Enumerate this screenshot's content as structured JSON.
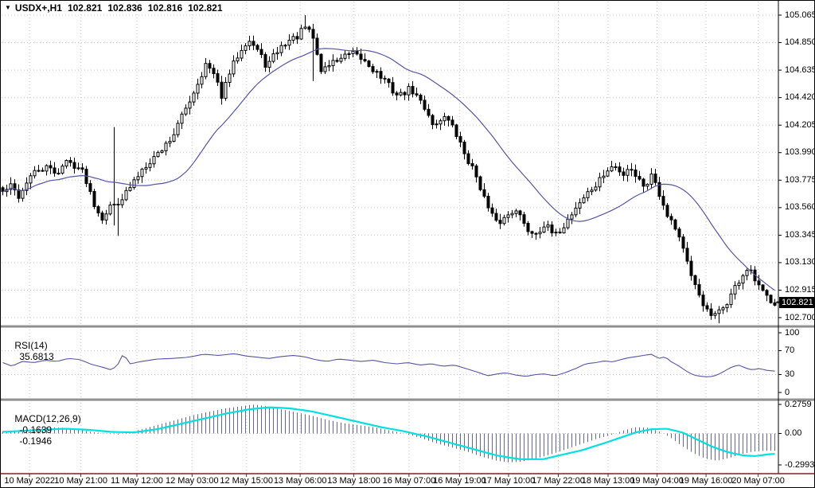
{
  "quote": {
    "symbol": "USDX+,H1",
    "open": "102.821",
    "high": "102.836",
    "low": "102.816",
    "close": "102.821",
    "close_num": 102.821
  },
  "indicators": {
    "rsi": {
      "name": "RSI(14)",
      "value": "35.6813"
    },
    "macd": {
      "name": "MACD(12,26,9)",
      "value_main": "-0.1639",
      "value_signal": "-0.1946"
    }
  },
  "colors": {
    "bull_body": "#ffffff",
    "bear_body": "#000000",
    "candle_outline": "#000000",
    "ma_line": "#5555a5",
    "rsi_line": "#5555a5",
    "macd_histogram": "#6367a0",
    "macd_signal": "#00e0e0",
    "grid": "#c9c9c9",
    "axis_line": "#000000",
    "time_axis_line": "#7a2222",
    "price_box_bg": "#000000",
    "price_box_fg": "#ffffff"
  },
  "chart_data": [
    {
      "type": "candlestick",
      "symbol": "USDX+",
      "timeframe": "H1",
      "title": "USDX+,H1 102.821 102.836 102.816 102.821",
      "current_price": 102.821,
      "y_axis_labels": [
        "105.065",
        "104.850",
        "104.635",
        "104.420",
        "104.205",
        "103.990",
        "103.775",
        "103.560",
        "103.345",
        "103.130",
        "102.915",
        "102.700"
      ],
      "ylim": [
        102.644,
        105.09
      ],
      "num_candles": 195,
      "ma_period": 24,
      "price_path": [
        [
          0.0,
          103.68
        ],
        [
          0.01,
          103.73
        ],
        [
          0.022,
          103.64
        ],
        [
          0.032,
          103.78
        ],
        [
          0.045,
          103.85
        ],
        [
          0.058,
          103.87
        ],
        [
          0.07,
          103.83
        ],
        [
          0.082,
          103.92
        ],
        [
          0.095,
          103.89
        ],
        [
          0.105,
          103.83
        ],
        [
          0.118,
          103.6
        ],
        [
          0.128,
          103.48
        ],
        [
          0.138,
          103.56
        ],
        [
          0.148,
          103.6
        ],
        [
          0.158,
          103.66
        ],
        [
          0.17,
          103.76
        ],
        [
          0.182,
          103.88
        ],
        [
          0.193,
          103.94
        ],
        [
          0.205,
          104.01
        ],
        [
          0.22,
          104.12
        ],
        [
          0.235,
          104.31
        ],
        [
          0.25,
          104.5
        ],
        [
          0.263,
          104.68
        ],
        [
          0.273,
          104.6
        ],
        [
          0.284,
          104.43
        ],
        [
          0.295,
          104.63
        ],
        [
          0.308,
          104.8
        ],
        [
          0.318,
          104.88
        ],
        [
          0.33,
          104.79
        ],
        [
          0.342,
          104.66
        ],
        [
          0.355,
          104.78
        ],
        [
          0.368,
          104.86
        ],
        [
          0.38,
          104.89
        ],
        [
          0.392,
          104.97
        ],
        [
          0.402,
          104.89
        ],
        [
          0.412,
          104.63
        ],
        [
          0.425,
          104.69
        ],
        [
          0.438,
          104.73
        ],
        [
          0.452,
          104.76
        ],
        [
          0.468,
          104.71
        ],
        [
          0.482,
          104.63
        ],
        [
          0.498,
          104.53
        ],
        [
          0.512,
          104.43
        ],
        [
          0.528,
          104.49
        ],
        [
          0.545,
          104.36
        ],
        [
          0.56,
          104.19
        ],
        [
          0.572,
          104.29
        ],
        [
          0.585,
          104.16
        ],
        [
          0.6,
          103.96
        ],
        [
          0.615,
          103.79
        ],
        [
          0.628,
          103.56
        ],
        [
          0.64,
          103.43
        ],
        [
          0.652,
          103.49
        ],
        [
          0.665,
          103.56
        ],
        [
          0.678,
          103.39
        ],
        [
          0.69,
          103.36
        ],
        [
          0.702,
          103.43
        ],
        [
          0.715,
          103.33
        ],
        [
          0.728,
          103.43
        ],
        [
          0.742,
          103.56
        ],
        [
          0.755,
          103.66
        ],
        [
          0.768,
          103.73
        ],
        [
          0.78,
          103.83
        ],
        [
          0.792,
          103.89
        ],
        [
          0.802,
          103.81
        ],
        [
          0.812,
          103.89
        ],
        [
          0.822,
          103.79
        ],
        [
          0.832,
          103.73
        ],
        [
          0.842,
          103.83
        ],
        [
          0.852,
          103.64
        ],
        [
          0.862,
          103.5
        ],
        [
          0.872,
          103.4
        ],
        [
          0.882,
          103.24
        ],
        [
          0.892,
          103.0
        ],
        [
          0.902,
          102.88
        ],
        [
          0.912,
          102.75
        ],
        [
          0.92,
          102.7
        ],
        [
          0.928,
          102.74
        ],
        [
          0.938,
          102.82
        ],
        [
          0.948,
          102.93
        ],
        [
          0.958,
          103.03
        ],
        [
          0.966,
          103.08
        ],
        [
          0.974,
          102.99
        ],
        [
          0.982,
          102.91
        ],
        [
          0.99,
          102.86
        ],
        [
          1.0,
          102.821
        ]
      ],
      "candle_overrides": {
        "28": {
          "high": 104.19,
          "low": 103.42
        },
        "29": {
          "low": 103.34
        },
        "76": {
          "high": 105.065
        },
        "78": {
          "low": 104.55
        },
        "180": {
          "low": 102.655
        }
      },
      "time_labels": [
        {
          "label": "10 May 2022",
          "x": 0.037
        },
        {
          "label": "10 May 21:00",
          "x": 0.103
        },
        {
          "label": "11 May 12:00",
          "x": 0.175
        },
        {
          "label": "12 May 03:00",
          "x": 0.246
        },
        {
          "label": "12 May 15:00",
          "x": 0.316
        },
        {
          "label": "13 May 06:00",
          "x": 0.385
        },
        {
          "label": "13 May 18:00",
          "x": 0.454
        },
        {
          "label": "16 May 07:00",
          "x": 0.525
        },
        {
          "label": "16 May 19:00",
          "x": 0.59
        },
        {
          "label": "17 May 10:00",
          "x": 0.653
        },
        {
          "label": "17 May 22:00",
          "x": 0.717
        },
        {
          "label": "18 May 13:00",
          "x": 0.781
        },
        {
          "label": "19 May 04:00",
          "x": 0.844
        },
        {
          "label": "19 May 16:00",
          "x": 0.907
        },
        {
          "label": "20 May 07:00",
          "x": 0.974
        }
      ]
    },
    {
      "type": "line",
      "name": "RSI(14)",
      "last_value": 35.6813,
      "levels": [
        100,
        70,
        30,
        0
      ],
      "ylim": [
        0,
        100
      ],
      "points": [
        [
          0.0,
          50
        ],
        [
          0.012,
          44
        ],
        [
          0.025,
          52
        ],
        [
          0.04,
          50
        ],
        [
          0.055,
          54
        ],
        [
          0.07,
          52
        ],
        [
          0.085,
          57
        ],
        [
          0.1,
          55
        ],
        [
          0.115,
          47
        ],
        [
          0.13,
          42
        ],
        [
          0.14,
          38
        ],
        [
          0.148,
          44
        ],
        [
          0.156,
          65
        ],
        [
          0.165,
          48
        ],
        [
          0.18,
          52
        ],
        [
          0.2,
          56
        ],
        [
          0.22,
          57
        ],
        [
          0.24,
          59
        ],
        [
          0.26,
          64
        ],
        [
          0.28,
          62
        ],
        [
          0.3,
          65
        ],
        [
          0.315,
          61
        ],
        [
          0.33,
          59
        ],
        [
          0.345,
          57
        ],
        [
          0.36,
          60
        ],
        [
          0.375,
          62
        ],
        [
          0.39,
          60
        ],
        [
          0.405,
          55
        ],
        [
          0.42,
          52
        ],
        [
          0.435,
          56
        ],
        [
          0.45,
          54
        ],
        [
          0.465,
          52
        ],
        [
          0.48,
          54
        ],
        [
          0.495,
          50
        ],
        [
          0.51,
          48
        ],
        [
          0.525,
          50
        ],
        [
          0.54,
          46
        ],
        [
          0.555,
          48
        ],
        [
          0.57,
          44
        ],
        [
          0.585,
          46
        ],
        [
          0.6,
          40
        ],
        [
          0.615,
          34
        ],
        [
          0.628,
          28
        ],
        [
          0.64,
          31
        ],
        [
          0.652,
          33
        ],
        [
          0.665,
          29
        ],
        [
          0.678,
          27
        ],
        [
          0.69,
          30
        ],
        [
          0.702,
          31
        ],
        [
          0.715,
          28
        ],
        [
          0.728,
          33
        ],
        [
          0.742,
          40
        ],
        [
          0.755,
          48
        ],
        [
          0.768,
          50
        ],
        [
          0.78,
          53
        ],
        [
          0.79,
          51
        ],
        [
          0.8,
          55
        ],
        [
          0.81,
          58
        ],
        [
          0.82,
          60
        ],
        [
          0.83,
          62
        ],
        [
          0.84,
          64
        ],
        [
          0.85,
          57
        ],
        [
          0.858,
          60
        ],
        [
          0.865,
          52
        ],
        [
          0.875,
          45
        ],
        [
          0.885,
          36
        ],
        [
          0.895,
          29
        ],
        [
          0.905,
          27
        ],
        [
          0.915,
          26
        ],
        [
          0.925,
          29
        ],
        [
          0.935,
          36
        ],
        [
          0.945,
          43
        ],
        [
          0.953,
          46
        ],
        [
          0.962,
          41
        ],
        [
          0.97,
          38
        ],
        [
          0.98,
          40
        ],
        [
          0.99,
          37
        ],
        [
          1.0,
          35.7
        ]
      ]
    },
    {
      "type": "macd",
      "name": "MACD(12,26,9)",
      "macd_last": -0.1639,
      "signal_last": -0.1946,
      "axis_labels": [
        "0.2759",
        "0.00",
        "-0.2993"
      ],
      "ylim": [
        -0.383,
        0.306
      ],
      "macd_points": [
        [
          0.0,
          0.02
        ],
        [
          0.03,
          0.035
        ],
        [
          0.06,
          0.06
        ],
        [
          0.09,
          0.05
        ],
        [
          0.11,
          0.02
        ],
        [
          0.13,
          0.0
        ],
        [
          0.15,
          -0.01
        ],
        [
          0.17,
          0.02
        ],
        [
          0.19,
          0.06
        ],
        [
          0.21,
          0.1
        ],
        [
          0.23,
          0.14
        ],
        [
          0.25,
          0.18
        ],
        [
          0.27,
          0.21
        ],
        [
          0.29,
          0.24
        ],
        [
          0.31,
          0.26
        ],
        [
          0.325,
          0.275
        ],
        [
          0.34,
          0.26
        ],
        [
          0.36,
          0.23
        ],
        [
          0.38,
          0.2
        ],
        [
          0.4,
          0.17
        ],
        [
          0.42,
          0.13
        ],
        [
          0.44,
          0.1
        ],
        [
          0.46,
          0.08
        ],
        [
          0.48,
          0.06
        ],
        [
          0.5,
          0.03
        ],
        [
          0.52,
          0.0
        ],
        [
          0.54,
          -0.04
        ],
        [
          0.56,
          -0.09
        ],
        [
          0.58,
          -0.13
        ],
        [
          0.6,
          -0.17
        ],
        [
          0.62,
          -0.22
        ],
        [
          0.64,
          -0.26
        ],
        [
          0.655,
          -0.275
        ],
        [
          0.67,
          -0.27
        ],
        [
          0.69,
          -0.24
        ],
        [
          0.71,
          -0.2
        ],
        [
          0.73,
          -0.15
        ],
        [
          0.75,
          -0.1
        ],
        [
          0.77,
          -0.05
        ],
        [
          0.79,
          -0.01
        ],
        [
          0.805,
          0.03
        ],
        [
          0.82,
          0.06
        ],
        [
          0.835,
          0.055
        ],
        [
          0.85,
          0.02
        ],
        [
          0.865,
          -0.04
        ],
        [
          0.88,
          -0.12
        ],
        [
          0.895,
          -0.19
        ],
        [
          0.91,
          -0.24
        ],
        [
          0.925,
          -0.26
        ],
        [
          0.94,
          -0.235
        ],
        [
          0.955,
          -0.2
        ],
        [
          0.97,
          -0.175
        ],
        [
          0.985,
          -0.165
        ],
        [
          1.0,
          -0.1639
        ]
      ],
      "signal_points": [
        [
          0.0,
          0.015
        ],
        [
          0.04,
          0.03
        ],
        [
          0.08,
          0.045
        ],
        [
          0.11,
          0.035
        ],
        [
          0.14,
          0.015
        ],
        [
          0.17,
          0.01
        ],
        [
          0.2,
          0.04
        ],
        [
          0.23,
          0.09
        ],
        [
          0.26,
          0.14
        ],
        [
          0.29,
          0.19
        ],
        [
          0.32,
          0.23
        ],
        [
          0.345,
          0.248
        ],
        [
          0.37,
          0.24
        ],
        [
          0.4,
          0.21
        ],
        [
          0.43,
          0.16
        ],
        [
          0.46,
          0.11
        ],
        [
          0.49,
          0.06
        ],
        [
          0.52,
          0.02
        ],
        [
          0.55,
          -0.03
        ],
        [
          0.58,
          -0.09
        ],
        [
          0.61,
          -0.15
        ],
        [
          0.64,
          -0.21
        ],
        [
          0.67,
          -0.245
        ],
        [
          0.7,
          -0.245
        ],
        [
          0.72,
          -0.21
        ],
        [
          0.75,
          -0.16
        ],
        [
          0.78,
          -0.09
        ],
        [
          0.8,
          -0.04
        ],
        [
          0.82,
          0.01
        ],
        [
          0.84,
          0.04
        ],
        [
          0.86,
          0.045
        ],
        [
          0.88,
          0.01
        ],
        [
          0.9,
          -0.06
        ],
        [
          0.92,
          -0.13
        ],
        [
          0.94,
          -0.18
        ],
        [
          0.96,
          -0.21
        ],
        [
          0.975,
          -0.215
        ],
        [
          0.99,
          -0.2
        ],
        [
          1.0,
          -0.1946
        ]
      ]
    }
  ]
}
